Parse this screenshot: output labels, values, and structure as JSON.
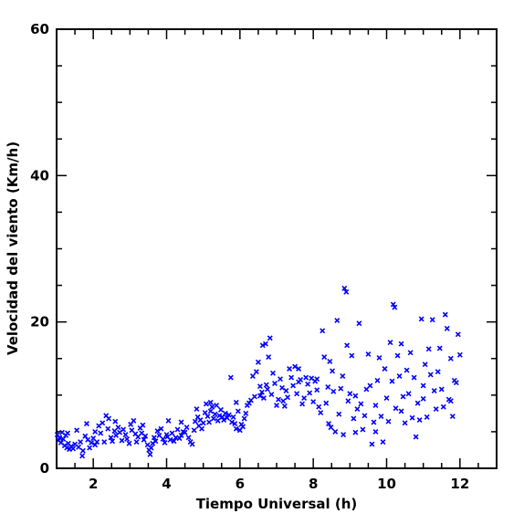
{
  "chart_data": {
    "type": "scatter",
    "title": "",
    "xlabel": "Tiempo Universal (h)",
    "ylabel": "Velocidad del viento (Km/h)",
    "xlim": [
      1,
      13
    ],
    "ylim": [
      0,
      60
    ],
    "x_ticks": [
      2,
      4,
      6,
      8,
      10,
      12
    ],
    "y_ticks": [
      0,
      20,
      40,
      60
    ],
    "x_tick_labels": [
      "2",
      "4",
      "6",
      "8",
      "10",
      "12"
    ],
    "y_tick_labels": [
      "0",
      "20",
      "40",
      "60"
    ],
    "marker": "x",
    "color": "#0000ff",
    "grid": false,
    "series": [
      {
        "points": [
          [
            1.02,
            4.6
          ],
          [
            1.05,
            3.8
          ],
          [
            1.08,
            4.2
          ],
          [
            1.12,
            3.5
          ],
          [
            1.15,
            4.9
          ],
          [
            1.18,
            4.0
          ],
          [
            1.22,
            3.1
          ],
          [
            1.25,
            4.5
          ],
          [
            1.28,
            2.8
          ],
          [
            1.32,
            3.4
          ],
          [
            1.35,
            2.6
          ],
          [
            1.4,
            3.0
          ],
          [
            1.45,
            2.7
          ],
          [
            1.5,
            3.3
          ],
          [
            1.55,
            5.2
          ],
          [
            1.6,
            2.9
          ],
          [
            1.65,
            3.6
          ],
          [
            1.7,
            1.7
          ],
          [
            1.72,
            2.4
          ],
          [
            1.78,
            4.4
          ],
          [
            1.82,
            6.1
          ],
          [
            1.85,
            3.9
          ],
          [
            1.9,
            2.8
          ],
          [
            1.95,
            3.5
          ],
          [
            2.0,
            4.1
          ],
          [
            2.05,
            5.0
          ],
          [
            2.1,
            3.6
          ],
          [
            2.15,
            5.8
          ],
          [
            2.2,
            4.8
          ],
          [
            2.25,
            6.2
          ],
          [
            2.3,
            3.6
          ],
          [
            2.35,
            7.2
          ],
          [
            2.4,
            5.4
          ],
          [
            2.42,
            6.8
          ],
          [
            2.48,
            4.2
          ],
          [
            2.52,
            3.7
          ],
          [
            2.58,
            5.1
          ],
          [
            2.62,
            4.5
          ],
          [
            2.68,
            5.6
          ],
          [
            2.72,
            4.9
          ],
          [
            2.78,
            3.8
          ],
          [
            2.82,
            5.3
          ],
          [
            2.88,
            4.6
          ],
          [
            2.92,
            4.0
          ],
          [
            2.98,
            3.4
          ],
          [
            3.02,
            6.0
          ],
          [
            3.05,
            5.2
          ],
          [
            3.1,
            6.5
          ],
          [
            3.15,
            4.7
          ],
          [
            3.18,
            3.6
          ],
          [
            3.22,
            4.3
          ],
          [
            3.28,
            5.5
          ],
          [
            3.32,
            4.8
          ],
          [
            3.38,
            3.9
          ],
          [
            3.42,
            4.4
          ],
          [
            3.48,
            3.2
          ],
          [
            3.52,
            2.5
          ],
          [
            3.55,
            1.9
          ],
          [
            3.58,
            2.8
          ],
          [
            3.62,
            3.4
          ],
          [
            3.66,
            4.2
          ],
          [
            3.7,
            3.7
          ],
          [
            3.75,
            5.1
          ],
          [
            3.8,
            4.5
          ],
          [
            3.85,
            5.4
          ],
          [
            3.9,
            4.0
          ],
          [
            3.95,
            3.5
          ],
          [
            4.0,
            4.6
          ],
          [
            4.02,
            4.3
          ],
          [
            4.05,
            6.5
          ],
          [
            4.1,
            3.9
          ],
          [
            4.15,
            4.8
          ],
          [
            4.2,
            3.7
          ],
          [
            4.25,
            4.2
          ],
          [
            4.3,
            5.3
          ],
          [
            4.35,
            4.1
          ],
          [
            4.4,
            4.5
          ],
          [
            4.45,
            5.0
          ],
          [
            4.5,
            4.9
          ],
          [
            4.55,
            5.6
          ],
          [
            4.6,
            4.2
          ],
          [
            4.65,
            3.6
          ],
          [
            4.7,
            3.3
          ],
          [
            4.75,
            5.2
          ],
          [
            4.78,
            6.4
          ],
          [
            4.82,
            8.1
          ],
          [
            4.85,
            7.0
          ],
          [
            4.88,
            5.8
          ],
          [
            4.92,
            6.6
          ],
          [
            4.96,
            5.4
          ],
          [
            5.0,
            6.2
          ],
          [
            5.05,
            7.6
          ],
          [
            5.08,
            8.8
          ],
          [
            5.12,
            7.1
          ],
          [
            5.16,
            6.3
          ],
          [
            5.2,
            7.8
          ],
          [
            5.24,
            8.4
          ],
          [
            5.28,
            6.8
          ],
          [
            5.32,
            7.4
          ],
          [
            5.36,
            8.6
          ],
          [
            5.4,
            6.5
          ],
          [
            5.44,
            7.2
          ],
          [
            5.48,
            8.0
          ],
          [
            5.52,
            7.0
          ],
          [
            5.56,
            6.6
          ],
          [
            5.6,
            7.5
          ],
          [
            5.65,
            6.9
          ],
          [
            5.7,
            7.3
          ],
          [
            5.75,
            12.4
          ],
          [
            5.78,
            6.3
          ],
          [
            5.82,
            7.0
          ],
          [
            5.86,
            6.1
          ],
          [
            5.9,
            5.4
          ],
          [
            5.95,
            7.8
          ],
          [
            6.0,
            5.2
          ],
          [
            6.04,
            6.0
          ],
          [
            6.08,
            5.7
          ],
          [
            6.12,
            6.8
          ],
          [
            6.16,
            7.5
          ],
          [
            6.2,
            8.6
          ],
          [
            6.25,
            8.9
          ],
          [
            6.3,
            9.3
          ],
          [
            6.35,
            12.6
          ],
          [
            6.4,
            9.8
          ],
          [
            6.45,
            13.2
          ],
          [
            6.5,
            14.5
          ],
          [
            6.55,
            11.2
          ],
          [
            6.6,
            10.4
          ],
          [
            6.62,
            16.8
          ],
          [
            6.65,
            9.6
          ],
          [
            6.7,
            17.0
          ],
          [
            6.72,
            11.4
          ],
          [
            6.75,
            10.8
          ],
          [
            6.78,
            15.2
          ],
          [
            6.82,
            17.8
          ],
          [
            6.86,
            10.1
          ],
          [
            6.9,
            13.0
          ],
          [
            6.95,
            11.6
          ],
          [
            7.0,
            8.6
          ],
          [
            7.05,
            9.4
          ],
          [
            7.1,
            12.2
          ],
          [
            7.15,
            11.0
          ],
          [
            7.18,
            9.2
          ],
          [
            7.22,
            8.5
          ],
          [
            7.26,
            10.6
          ],
          [
            7.3,
            9.7
          ],
          [
            7.35,
            13.6
          ],
          [
            7.4,
            12.4
          ],
          [
            7.45,
            11.3
          ],
          [
            7.5,
            13.9
          ],
          [
            7.55,
            10.2
          ],
          [
            7.6,
            11.8
          ],
          [
            7.65,
            12.1
          ],
          [
            7.7,
            8.8
          ],
          [
            7.75,
            9.6
          ],
          [
            7.8,
            12.4
          ],
          [
            7.85,
            11.5
          ],
          [
            7.9,
            10.3
          ],
          [
            7.95,
            12.3
          ],
          [
            8.0,
            9.1
          ],
          [
            8.05,
            11.9
          ],
          [
            8.1,
            10.7
          ],
          [
            8.15,
            8.4
          ],
          [
            8.2,
            7.6
          ],
          [
            8.25,
            18.8
          ],
          [
            8.3,
            15.2
          ],
          [
            8.35,
            8.9
          ],
          [
            8.4,
            11.1
          ],
          [
            8.42,
            6.1
          ],
          [
            8.48,
            5.6
          ],
          [
            8.52,
            13.3
          ],
          [
            8.55,
            10.5
          ],
          [
            8.6,
            5.0
          ],
          [
            8.65,
            20.2
          ],
          [
            8.7,
            7.4
          ],
          [
            8.75,
            10.9
          ],
          [
            8.8,
            12.6
          ],
          [
            8.82,
            4.6
          ],
          [
            8.85,
            24.6
          ],
          [
            8.9,
            24.1
          ],
          [
            8.92,
            16.8
          ],
          [
            8.95,
            9.2
          ],
          [
            9.0,
            10.2
          ],
          [
            9.05,
            15.4
          ],
          [
            9.1,
            6.8
          ],
          [
            9.15,
            4.9
          ],
          [
            9.2,
            8.1
          ],
          [
            9.25,
            19.8
          ],
          [
            9.3,
            8.8
          ],
          [
            9.35,
            5.3
          ],
          [
            9.4,
            7.2
          ],
          [
            9.45,
            10.8
          ],
          [
            9.5,
            15.6
          ],
          [
            9.55,
            11.3
          ],
          [
            9.6,
            3.3
          ],
          [
            9.65,
            6.3
          ],
          [
            9.7,
            8.6
          ],
          [
            9.75,
            12.0
          ],
          [
            9.8,
            15.1
          ],
          [
            9.85,
            7.1
          ],
          [
            9.9,
            3.6
          ],
          [
            9.95,
            13.6
          ],
          [
            10.0,
            9.6
          ],
          [
            10.05,
            6.4
          ],
          [
            10.1,
            17.2
          ],
          [
            10.15,
            11.9
          ],
          [
            10.18,
            22.4
          ],
          [
            10.22,
            22.0
          ],
          [
            10.25,
            8.2
          ],
          [
            10.3,
            15.4
          ],
          [
            10.35,
            12.6
          ],
          [
            10.4,
            17.0
          ],
          [
            10.45,
            9.8
          ],
          [
            10.5,
            6.2
          ],
          [
            10.55,
            13.4
          ],
          [
            10.6,
            10.2
          ],
          [
            10.65,
            15.8
          ],
          [
            10.7,
            6.9
          ],
          [
            10.75,
            12.4
          ],
          [
            10.8,
            4.3
          ],
          [
            10.85,
            8.9
          ],
          [
            10.9,
            6.6
          ],
          [
            10.95,
            20.4
          ],
          [
            11.0,
            9.5
          ],
          [
            11.05,
            14.2
          ],
          [
            11.1,
            7.0
          ],
          [
            11.15,
            16.3
          ],
          [
            11.2,
            12.8
          ],
          [
            11.25,
            20.3
          ],
          [
            11.3,
            10.6
          ],
          [
            11.35,
            8.1
          ],
          [
            11.4,
            13.2
          ],
          [
            11.45,
            16.4
          ],
          [
            11.5,
            10.8
          ],
          [
            11.55,
            8.4
          ],
          [
            11.6,
            21.0
          ],
          [
            11.65,
            19.1
          ],
          [
            11.7,
            9.4
          ],
          [
            11.75,
            15.0
          ],
          [
            11.8,
            7.1
          ],
          [
            11.85,
            12.0
          ],
          [
            11.9,
            11.7
          ],
          [
            11.95,
            18.3
          ],
          [
            12.0,
            15.5
          ],
          [
            1.3,
            4.8
          ],
          [
            2.05,
            3.2
          ],
          [
            2.6,
            6.4
          ],
          [
            3.35,
            5.9
          ],
          [
            4.4,
            6.3
          ],
          [
            5.2,
            9.0
          ],
          [
            5.9,
            9.0
          ],
          [
            6.55,
            9.9
          ],
          [
            7.6,
            13.6
          ],
          [
            8.1,
            12.2
          ],
          [
            8.45,
            14.6
          ],
          [
            9.15,
            9.9
          ],
          [
            9.7,
            5.0
          ],
          [
            10.4,
            7.8
          ],
          [
            11.0,
            11.3
          ],
          [
            11.75,
            9.2
          ]
        ]
      }
    ]
  }
}
